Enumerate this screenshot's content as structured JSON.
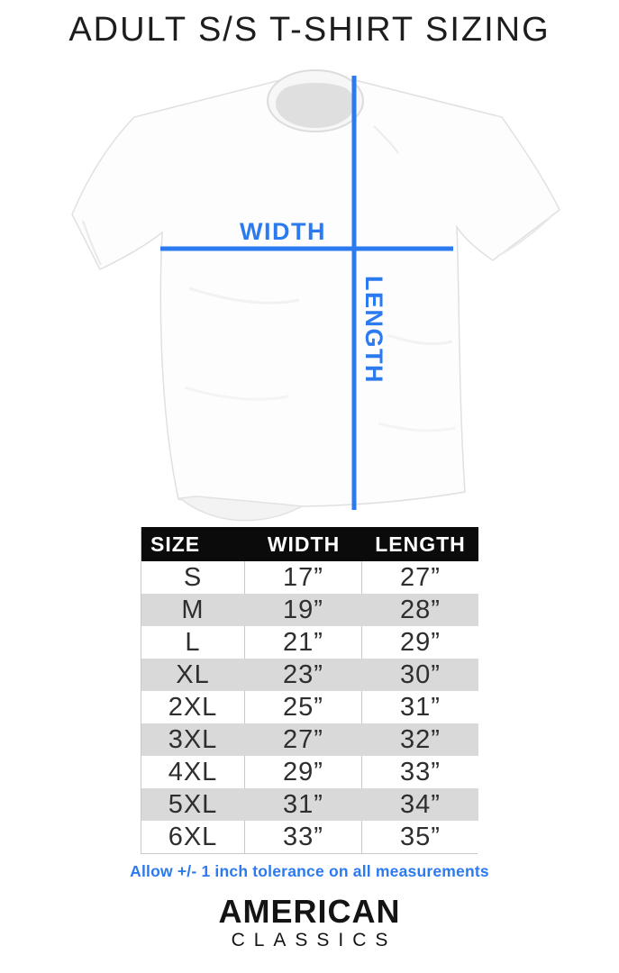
{
  "page": {
    "title": "ADULT S/S T-SHIRT SIZING",
    "tolerance_note": "Allow +/- 1 inch tolerance on all measurements"
  },
  "diagram": {
    "width_label": "WIDTH",
    "length_label": "LENGTH"
  },
  "size_table": {
    "headers": [
      "SIZE",
      "WIDTH",
      "LENGTH"
    ],
    "rows": [
      {
        "size": "S",
        "width": "17”",
        "length": "27”"
      },
      {
        "size": "M",
        "width": "19”",
        "length": "28”"
      },
      {
        "size": "L",
        "width": "21”",
        "length": "29”"
      },
      {
        "size": "XL",
        "width": "23”",
        "length": "30”"
      },
      {
        "size": "2XL",
        "width": "25”",
        "length": "31”"
      },
      {
        "size": "3XL",
        "width": "27”",
        "length": "32”"
      },
      {
        "size": "4XL",
        "width": "29”",
        "length": "33”"
      },
      {
        "size": "5XL",
        "width": "31”",
        "length": "34”"
      },
      {
        "size": "6XL",
        "width": "33”",
        "length": "35”"
      }
    ]
  },
  "brand": {
    "line1": "AMERICAN",
    "line2": "CLASSICS"
  },
  "colors": {
    "accent_blue": "#2b7af0",
    "table_header_bg": "#0b0b0b",
    "row_alt_gray": "#d9d9d9"
  }
}
